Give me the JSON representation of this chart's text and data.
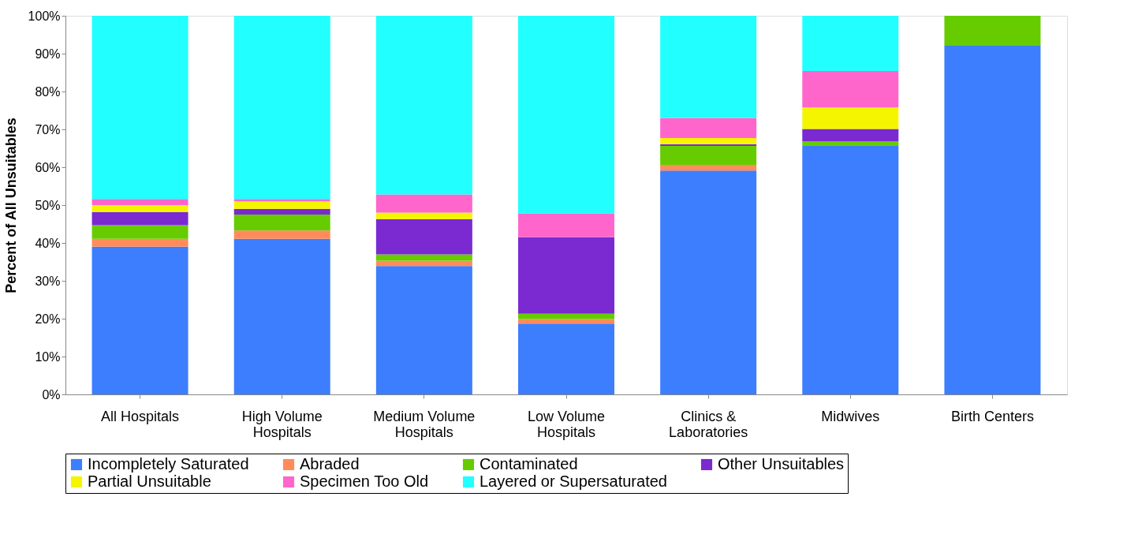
{
  "chart_data": {
    "type": "bar",
    "stacked": true,
    "ylabel": "Percent of  All Unsuitables",
    "categories": [
      "All Hospitals",
      "High Volume Hospitals",
      "Medium Volume Hospitals",
      "Low Volume Hospitals",
      "Clinics & Laboratories",
      "Midwives",
      "Birth Centers"
    ],
    "series": [
      {
        "name": "Incompletely Saturated",
        "color": "#3d7eff",
        "values": [
          39.0,
          41.1,
          33.9,
          18.7,
          59.1,
          65.6,
          92.1
        ]
      },
      {
        "name": "Abraded",
        "color": "#ff8c5a",
        "values": [
          2.1,
          2.2,
          1.4,
          1.2,
          1.5,
          0,
          0
        ]
      },
      {
        "name": "Contaminated",
        "color": "#66cc00",
        "values": [
          3.6,
          4.2,
          1.7,
          1.4,
          5.0,
          1.3,
          7.9
        ]
      },
      {
        "name": "Other Unsuitables",
        "color": "#7a2ad0",
        "values": [
          3.5,
          1.5,
          9.3,
          20.2,
          0.5,
          3.2,
          0
        ]
      },
      {
        "name": "Partial Unsuitable",
        "color": "#f5f500",
        "values": [
          1.8,
          2.0,
          1.7,
          0,
          1.6,
          5.7,
          0
        ]
      },
      {
        "name": "Specimen Too Old",
        "color": "#ff66cc",
        "values": [
          1.6,
          0.6,
          4.8,
          6.3,
          5.3,
          9.6,
          0
        ]
      },
      {
        "name": "Layered or Supersaturated",
        "color": "#22ffff",
        "values": [
          48.4,
          48.4,
          47.2,
          52.2,
          27.0,
          14.6,
          0
        ]
      }
    ],
    "ylim": [
      0,
      100
    ],
    "yticks": [
      {
        "value": 0,
        "label": "0%"
      },
      {
        "value": 10,
        "label": "10%"
      },
      {
        "value": 20,
        "label": "20%"
      },
      {
        "value": 30,
        "label": "30%"
      },
      {
        "value": 40,
        "label": "40%"
      },
      {
        "value": 50,
        "label": "50%"
      },
      {
        "value": 60,
        "label": "60%"
      },
      {
        "value": 70,
        "label": "70%"
      },
      {
        "value": 80,
        "label": "80%"
      },
      {
        "value": 90,
        "label": "90%"
      },
      {
        "value": 100,
        "label": "100%"
      }
    ],
    "grid": false,
    "legend": "bottom"
  }
}
